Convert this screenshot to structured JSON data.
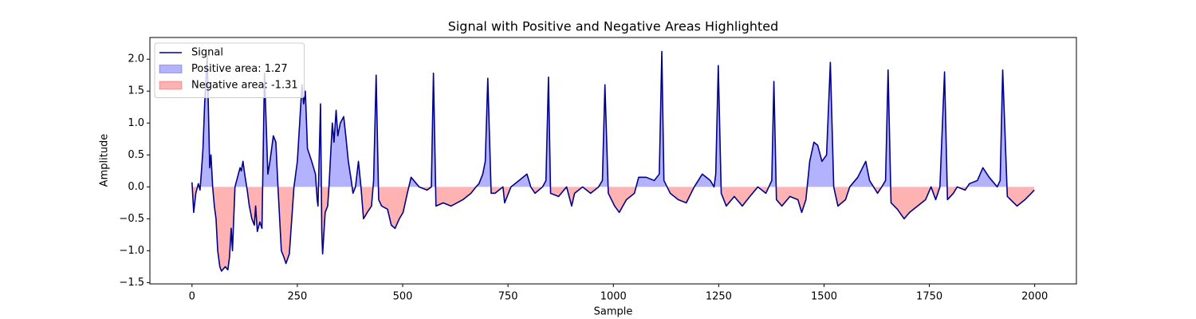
{
  "chart_data": {
    "type": "filled-line",
    "title": "Signal with Positive and Negative Areas Highlighted",
    "xlabel": "Sample",
    "ylabel": "Amplitude",
    "xlim": [
      -99.95,
      2098.95
    ],
    "ylim": [
      -1.52,
      2.34
    ],
    "xticks": [
      0,
      250,
      500,
      750,
      1000,
      1250,
      1500,
      1750,
      2000
    ],
    "yticks": [
      {
        "value": -1.5,
        "label": "−1.5"
      },
      {
        "value": -1,
        "label": "−1.0"
      },
      {
        "value": -0.5,
        "label": "−0.5"
      },
      {
        "value": 0,
        "label": "0.0"
      },
      0.5,
      {
        "value": 1,
        "label": "1.0"
      },
      1.5,
      {
        "value": 2,
        "label": "2.0"
      }
    ],
    "legend": "upper left",
    "series": [
      {
        "name": "Signal",
        "color": "#00008b",
        "x": [
          0,
          4,
          9,
          15,
          19,
          23,
          26,
          30,
          36,
          40,
          42,
          45,
          49,
          53,
          57,
          61,
          66,
          70,
          79,
          85,
          89,
          93,
          96,
          102,
          106,
          114,
          117,
          121,
          125,
          131,
          136,
          142,
          148,
          151,
          155,
          161,
          166,
          172,
          180,
          185,
          193,
          199,
          204,
          208,
          212,
          218,
          223,
          231,
          242,
          250,
          261,
          265,
          269,
          274,
          284,
          293,
          297,
          299,
          305,
          308,
          310,
          316,
          322,
          325,
          333,
          337,
          342,
          346,
          352,
          360,
          365,
          371,
          378,
          382,
          388,
          395,
          401,
          407,
          416,
          426,
          431,
          437,
          443,
          450,
          464,
          473,
          482,
          492,
          501,
          511,
          520,
          539,
          558,
          568,
          573,
          579,
          596,
          615,
          643,
          662,
          674,
          681,
          690,
          696,
          702,
          710,
          719,
          738,
          742,
          757,
          776,
          795,
          804,
          814,
          832,
          840,
          846,
          851,
          870,
          889,
          901,
          908,
          927,
          946,
          965,
          974,
          980,
          988,
          1003,
          1014,
          1031,
          1050,
          1060,
          1078,
          1097,
          1109,
          1115,
          1120,
          1135,
          1154,
          1173,
          1192,
          1211,
          1230,
          1239,
          1243,
          1249,
          1256,
          1268,
          1287,
          1306,
          1324,
          1343,
          1362,
          1376,
          1381,
          1387,
          1400,
          1419,
          1438,
          1447,
          1457,
          1466,
          1476,
          1485,
          1495,
          1506,
          1515,
          1523,
          1533,
          1551,
          1561,
          1580,
          1599,
          1608,
          1627,
          1637,
          1646,
          1652,
          1659,
          1674,
          1690,
          1703,
          1722,
          1741,
          1754,
          1765,
          1775,
          1786,
          1793,
          1807,
          1816,
          1835,
          1845,
          1864,
          1877,
          1892,
          1911,
          1918,
          1924,
          1935,
          1958,
          1977,
          1992,
          1999
        ],
        "values": [
          0.07,
          -0.4,
          -0.1,
          0.05,
          -0.05,
          0.3,
          0.6,
          1.3,
          2.05,
          0.9,
          0.3,
          0.5,
          0.0,
          -0.3,
          -0.5,
          -1.0,
          -1.25,
          -1.32,
          -1.25,
          -1.3,
          -1.1,
          -0.65,
          -1.0,
          0.0,
          0.1,
          0.3,
          0.25,
          0.4,
          0.2,
          -0.05,
          -0.3,
          -0.5,
          -0.6,
          -0.3,
          -0.7,
          -0.55,
          -0.65,
          1.78,
          0.2,
          0.4,
          0.8,
          0.7,
          0.0,
          -0.5,
          -1.0,
          -1.1,
          -1.2,
          -1.05,
          0.0,
          0.4,
          1.6,
          1.3,
          1.5,
          0.6,
          0.4,
          0.2,
          -0.2,
          -0.3,
          1.3,
          -0.7,
          -1.05,
          -0.4,
          -0.3,
          0.0,
          1.0,
          0.7,
          1.2,
          0.8,
          1.0,
          1.1,
          0.8,
          0.4,
          0.1,
          -0.1,
          0.0,
          0.4,
          0.0,
          -0.5,
          -0.4,
          -0.3,
          0.1,
          1.75,
          -0.2,
          -0.3,
          -0.35,
          -0.6,
          -0.65,
          -0.5,
          -0.4,
          -0.1,
          0.15,
          0.0,
          -0.05,
          0.0,
          1.78,
          -0.3,
          -0.25,
          -0.3,
          -0.2,
          -0.1,
          0.0,
          0.05,
          0.2,
          0.4,
          1.7,
          -0.1,
          -0.1,
          0.0,
          -0.25,
          0.0,
          0.1,
          0.2,
          0.0,
          -0.1,
          0.0,
          0.1,
          1.72,
          -0.1,
          -0.15,
          0.0,
          -0.3,
          -0.1,
          0.0,
          -0.1,
          0.0,
          0.1,
          1.6,
          -0.1,
          -0.3,
          -0.4,
          -0.2,
          -0.1,
          0.15,
          0.15,
          0.1,
          0.2,
          2.12,
          0.1,
          -0.1,
          -0.2,
          -0.25,
          0.0,
          0.2,
          0.1,
          0.0,
          0.2,
          1.9,
          -0.1,
          -0.3,
          -0.15,
          -0.3,
          -0.15,
          0.0,
          -0.1,
          0.1,
          1.65,
          -0.2,
          -0.3,
          -0.15,
          -0.2,
          -0.4,
          -0.2,
          0.4,
          0.7,
          0.65,
          0.4,
          0.5,
          1.95,
          0.0,
          -0.3,
          -0.2,
          0.0,
          0.15,
          0.4,
          0.1,
          -0.1,
          0.0,
          0.1,
          1.83,
          -0.25,
          -0.35,
          -0.5,
          -0.4,
          -0.3,
          -0.2,
          0.0,
          -0.2,
          0.0,
          1.8,
          -0.2,
          -0.1,
          0.0,
          -0.05,
          0.05,
          0.1,
          0.3,
          0.15,
          0.0,
          0.1,
          1.83,
          -0.15,
          -0.3,
          -0.2,
          -0.1,
          -0.05
        ]
      }
    ],
    "fills": [
      {
        "name": "Positive area: 1.27",
        "color": "#0000ff",
        "where": "above"
      },
      {
        "name": "Negative area: -1.31",
        "color": "#ff0000",
        "where": "below"
      }
    ]
  }
}
